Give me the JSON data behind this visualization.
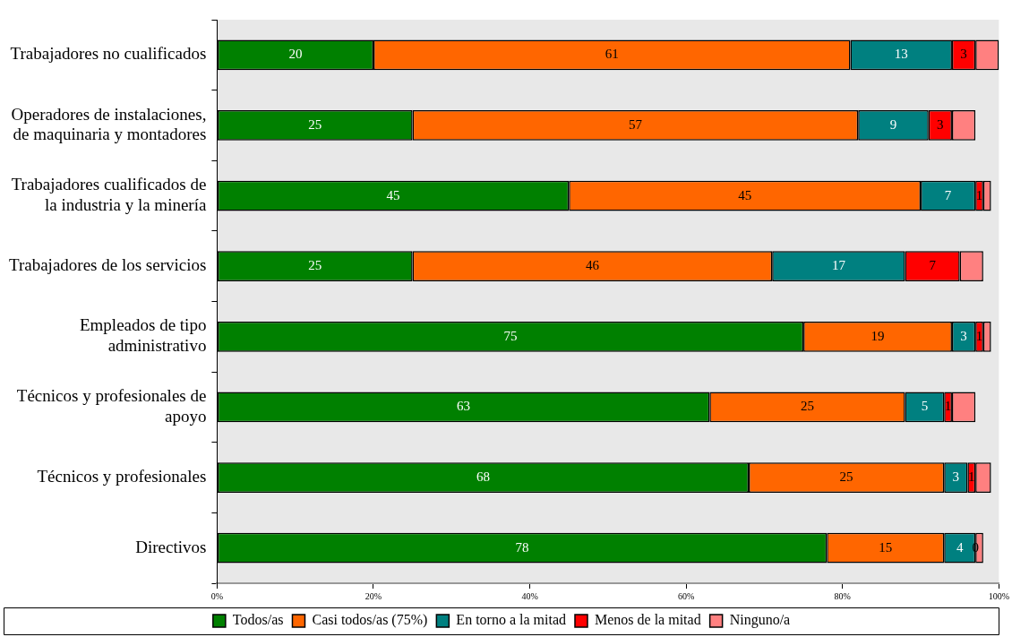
{
  "chart_data": {
    "type": "bar",
    "orientation": "horizontal",
    "stacked": true,
    "categories": [
      "Trabajadores no cualificados",
      "Operadores de instalaciones,\nde maquinaria y montadores",
      "Trabajadores cualificados de\nla industria y la minería",
      "Trabajadores de los servicios",
      "Empleados de tipo\nadministrativo",
      "Técnicos y profesionales de\napoyo",
      "Técnicos y profesionales",
      "Directivos"
    ],
    "series": [
      {
        "name": "Todos/as",
        "color": "#008000",
        "values": [
          20,
          25,
          45,
          25,
          75,
          63,
          68,
          78
        ],
        "value_labels": [
          "20",
          "25",
          "45",
          "25",
          "75",
          "63",
          "68",
          "78"
        ]
      },
      {
        "name": "Casi todos/as (75%)",
        "color": "#ff6600",
        "values": [
          61,
          57,
          45,
          46,
          19,
          25,
          25,
          15
        ],
        "value_labels": [
          "61",
          "57",
          "45",
          "46",
          "19",
          "25",
          "25",
          "15"
        ]
      },
      {
        "name": "En torno a la mitad",
        "color": "#008080",
        "values": [
          13,
          9,
          7,
          17,
          3,
          5,
          3,
          4
        ],
        "value_labels": [
          "13",
          "9",
          "7",
          "17",
          "3",
          "5",
          "3",
          "4"
        ]
      },
      {
        "name": "Menos de la mitad",
        "color": "#ff0000",
        "values": [
          3,
          3,
          1,
          7,
          1,
          1,
          1,
          0
        ],
        "value_labels": [
          "3",
          "3",
          "1",
          "7",
          "1",
          "1",
          "1",
          "0"
        ]
      },
      {
        "name": "Ninguno/a",
        "color": "#ff8080",
        "values": [
          3,
          3,
          1,
          3,
          1,
          3,
          2,
          1
        ]
      }
    ],
    "xlim": [
      0,
      100
    ],
    "xticks": [
      {
        "value": 0,
        "label": "0%"
      },
      {
        "value": 20,
        "label": "20%"
      },
      {
        "value": 40,
        "label": "40%"
      },
      {
        "value": 60,
        "label": "60%"
      },
      {
        "value": 80,
        "label": "80%"
      },
      {
        "value": 100,
        "label": "100%"
      }
    ],
    "grid": false,
    "legend": "bottom"
  }
}
